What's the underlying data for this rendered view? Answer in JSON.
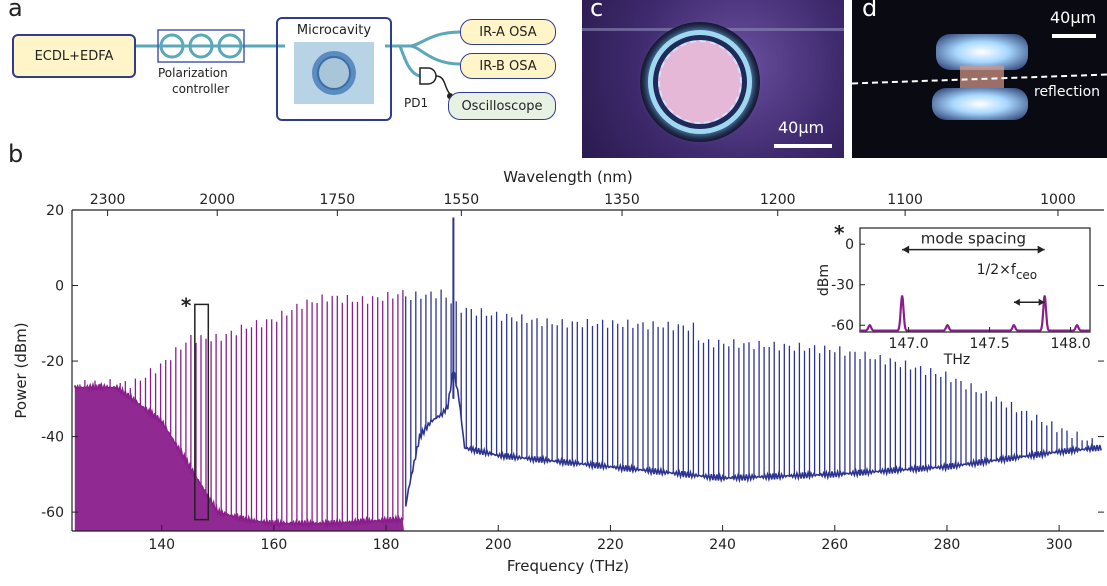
{
  "panel_a": {
    "letter": "a",
    "ecdl": "ECDL+EDFA",
    "polarization": "Polarization",
    "controller": "controller",
    "microcavity": "Microcavity",
    "ir_a": "IR-A OSA",
    "ir_b": "IR-B OSA",
    "pd1": "PD1",
    "oscilloscope": "Oscilloscope"
  },
  "panel_c": {
    "letter": "c",
    "scale": "40μm"
  },
  "panel_d": {
    "letter": "d",
    "scale": "40μm",
    "reflection": "reflection"
  },
  "panel_b": {
    "letter": "b"
  },
  "colors": {
    "purple": "#8a1e8c",
    "blue": "#2d3490",
    "box_blue": "#2f3d8e",
    "ir_fill": "#fff4c2",
    "osc_fill": "#e8f2e4"
  },
  "chart_data": [
    {
      "type": "line",
      "title": "",
      "xlabel": "Frequency (THz)",
      "ylabel": "Power (dBm)",
      "x2label": "Wavelength (nm)",
      "xlim": [
        124,
        308
      ],
      "ylim": [
        -65,
        20
      ],
      "xticks": [
        140,
        160,
        180,
        200,
        220,
        240,
        260,
        280,
        300
      ],
      "yticks": [
        20,
        0,
        -20,
        -40,
        -60
      ],
      "wavelength_ticks": [
        2300,
        2000,
        1750,
        1550,
        1350,
        1200,
        1100,
        1000
      ],
      "star": "*",
      "series": [
        {
          "comb_start_thz": 124.5,
          "comb_end_thz": 183.2,
          "comb_spacing_thz": 0.9,
          "peak_envelope": [
            [
              125,
              -26
            ],
            [
              135,
              -26
            ],
            [
              140,
              -21
            ],
            [
              145,
              -14
            ],
            [
              150,
              -14
            ],
            [
              155,
              -11
            ],
            [
              160,
              -9
            ],
            [
              165,
              -5
            ],
            [
              170,
              -3
            ],
            [
              175,
              -4
            ],
            [
              180,
              -3
            ],
            [
              183,
              -2
            ]
          ],
          "noise_floor": [
            [
              124.5,
              -27
            ],
            [
              132,
              -27
            ],
            [
              140,
              -36
            ],
            [
              145,
              -48
            ],
            [
              150,
              -60
            ],
            [
              155,
              -62
            ],
            [
              160,
              -63
            ],
            [
              170,
              -63
            ],
            [
              182,
              -62
            ]
          ]
        },
        {
          "comb_start_thz": 183.5,
          "comb_end_thz": 307.5,
          "comb_spacing_thz": 0.9,
          "peak_envelope": [
            [
              184,
              -3
            ],
            [
              190,
              -2
            ],
            [
              193,
              -6
            ],
            [
              200,
              -8
            ],
            [
              210,
              -10
            ],
            [
              220,
              -10
            ],
            [
              235,
              -11
            ],
            [
              236,
              -15
            ],
            [
              250,
              -16
            ],
            [
              260,
              -17
            ],
            [
              270,
              -20
            ],
            [
              280,
              -24
            ],
            [
              290,
              -31
            ],
            [
              300,
              -38
            ],
            [
              307,
              -42
            ]
          ],
          "noise_floor": [
            [
              183,
              -63
            ],
            [
              184,
              -54
            ],
            [
              186,
              -40
            ],
            [
              188,
              -36
            ],
            [
              190,
              -34
            ],
            [
              191,
              -32
            ],
            [
              192,
              -22
            ],
            [
              193,
              -30
            ],
            [
              194,
              -43
            ],
            [
              200,
              -45
            ],
            [
              220,
              -48
            ],
            [
              240,
              -51
            ],
            [
              260,
              -50
            ],
            [
              280,
              -48
            ],
            [
              300,
              -44
            ],
            [
              307,
              -43
            ]
          ],
          "pump_thz": 192,
          "pump_dbm": 18
        }
      ]
    },
    {
      "type": "line",
      "title": "mode spacing",
      "xlabel": "THz",
      "ylabel": "dBm",
      "xlim": [
        146.7,
        148.12
      ],
      "ylim": [
        -65,
        12
      ],
      "xticks": [
        147.0,
        147.5,
        148.0
      ],
      "xtick_labels": [
        "147.0",
        "147.5",
        "148.0"
      ],
      "yticks": [
        0,
        -30,
        -60
      ],
      "annotation": "1/2×f",
      "annotation_sub": "ceo",
      "star": "*",
      "peaks": [
        [
          146.76,
          -60
        ],
        [
          146.96,
          -38
        ],
        [
          147.24,
          -60
        ],
        [
          147.65,
          -60
        ],
        [
          147.84,
          -38
        ],
        [
          148.04,
          -60
        ]
      ],
      "mode_spacing_from": 146.96,
      "mode_spacing_to": 147.84,
      "ceo_from": 147.65,
      "ceo_to": 147.84
    }
  ]
}
